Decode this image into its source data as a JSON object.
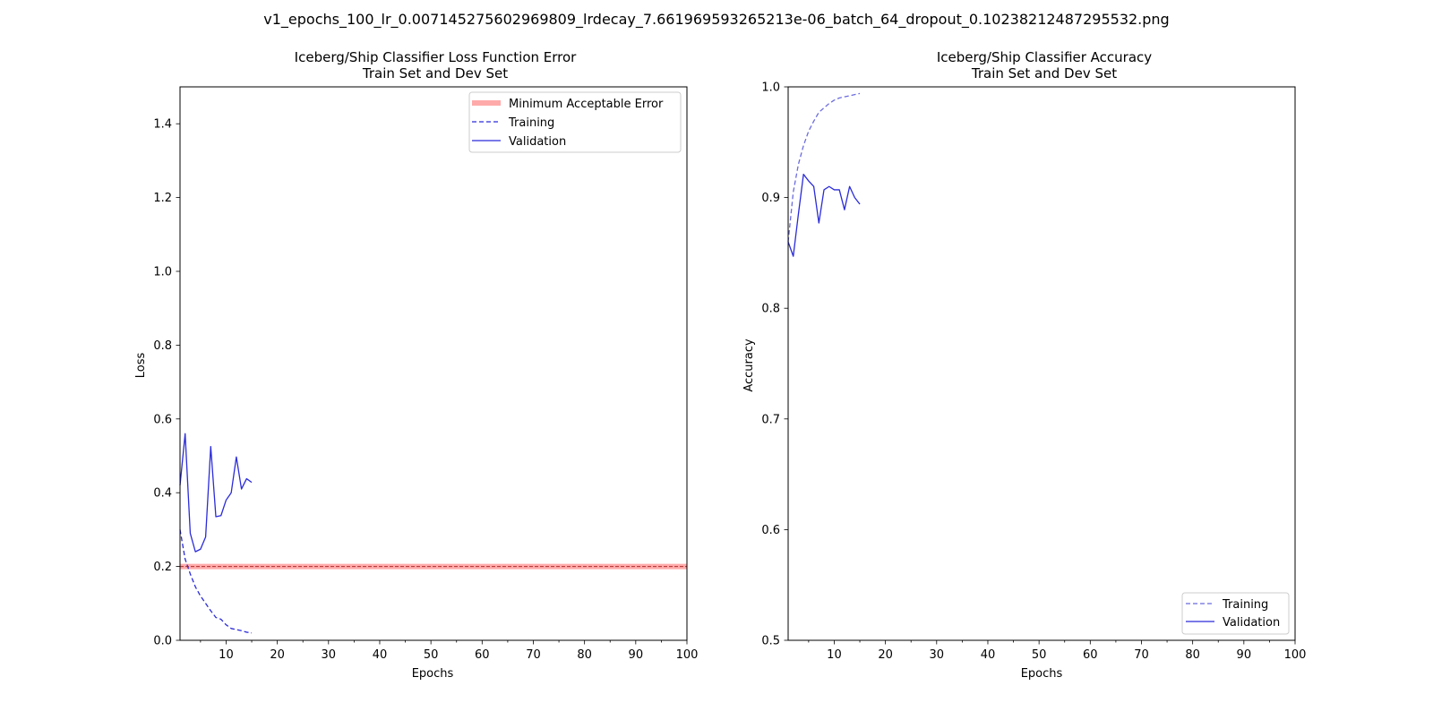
{
  "figure": {
    "suptitle": "v1_epochs_100_lr_0.007145275602969809_lrdecay_7.661969593265213e-06_batch_64_dropout_0.10238212487295532.png"
  },
  "colors": {
    "line": "#2b2bd9",
    "training_acc": "#6b6bdf",
    "min_error": "#ffaaaa",
    "min_error_dash": "#b03030"
  },
  "chart_data": [
    {
      "type": "line",
      "title_line1": "Iceberg/Ship Classifier Loss Function Error",
      "title_line2": "Train Set and Dev Set",
      "xlabel": "Epochs",
      "ylabel": "Loss",
      "xlim": [
        1,
        100
      ],
      "ylim": [
        0.0,
        1.5
      ],
      "xticks": [
        10,
        20,
        30,
        40,
        50,
        60,
        70,
        80,
        90,
        100
      ],
      "yticks": [
        0.0,
        0.2,
        0.4,
        0.6,
        0.8,
        1.0,
        1.2,
        1.4
      ],
      "grid": false,
      "legend_position": "top-right",
      "threshold": {
        "name": "Minimum Acceptable Error",
        "y": 0.2
      },
      "series": [
        {
          "name": "Training",
          "style": "dashed",
          "x": [
            1,
            2,
            3,
            4,
            5,
            6,
            7,
            8,
            9,
            10,
            11,
            12,
            13,
            14,
            15
          ],
          "y": [
            0.3,
            0.22,
            0.18,
            0.145,
            0.12,
            0.1,
            0.08,
            0.062,
            0.057,
            0.042,
            0.032,
            0.029,
            0.026,
            0.022,
            0.02
          ]
        },
        {
          "name": "Validation",
          "style": "solid",
          "x": [
            1,
            2,
            3,
            4,
            5,
            6,
            7,
            8,
            9,
            10,
            11,
            12,
            13,
            14,
            15
          ],
          "y": [
            0.42,
            0.56,
            0.29,
            0.24,
            0.247,
            0.28,
            0.525,
            0.335,
            0.338,
            0.38,
            0.4,
            0.497,
            0.41,
            0.438,
            0.428
          ]
        }
      ]
    },
    {
      "type": "line",
      "title_line1": "Iceberg/Ship Classifier Accuracy",
      "title_line2": "Train Set and Dev Set",
      "xlabel": "Epochs",
      "ylabel": "Accuracy",
      "xlim": [
        1,
        100
      ],
      "ylim": [
        0.5,
        1.0
      ],
      "xticks": [
        10,
        20,
        30,
        40,
        50,
        60,
        70,
        80,
        90,
        100
      ],
      "yticks": [
        0.5,
        0.6,
        0.7,
        0.8,
        0.9,
        1.0
      ],
      "grid": false,
      "legend_position": "bottom-right",
      "series": [
        {
          "name": "Training",
          "style": "dashed",
          "x": [
            1,
            2,
            3,
            4,
            5,
            6,
            7,
            8,
            9,
            10,
            11,
            12,
            13,
            14,
            15
          ],
          "y": [
            0.86,
            0.905,
            0.93,
            0.947,
            0.96,
            0.969,
            0.977,
            0.981,
            0.985,
            0.988,
            0.99,
            0.991,
            0.992,
            0.993,
            0.994
          ]
        },
        {
          "name": "Validation",
          "style": "solid",
          "x": [
            1,
            2,
            3,
            4,
            5,
            6,
            7,
            8,
            9,
            10,
            11,
            12,
            13,
            14,
            15
          ],
          "y": [
            0.86,
            0.847,
            0.885,
            0.921,
            0.915,
            0.91,
            0.877,
            0.907,
            0.91,
            0.907,
            0.907,
            0.889,
            0.91,
            0.9,
            0.894
          ]
        }
      ]
    }
  ]
}
